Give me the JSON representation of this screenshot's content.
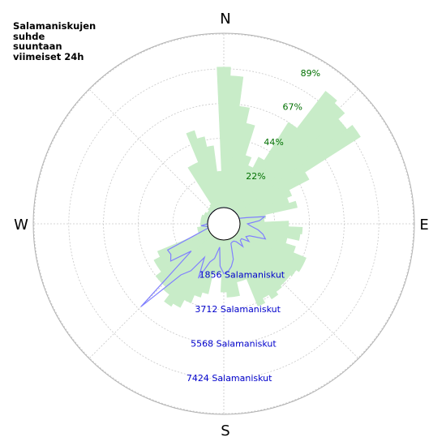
{
  "chart_data": {
    "type": "polar",
    "title": "Salamaniskujen\nsuhde\nsuuntaan\nviimeiset 24h",
    "compass_labels": [
      "N",
      "E",
      "S",
      "W"
    ],
    "percent_ticks": [
      "22%",
      "44%",
      "67%",
      "89%"
    ],
    "percent_tick_values": [
      22,
      44,
      67,
      89
    ],
    "percent_max": 100,
    "count_ticks": [
      "1856 Salamaniskut",
      "3712 Salamaniskut",
      "5568 Salamaniskut",
      "7424 Salamaniskut"
    ],
    "count_tick_values": [
      1856,
      3712,
      5568,
      7424
    ],
    "count_max": 9280,
    "grid": true,
    "bin_width_deg": 5,
    "series": [
      {
        "kind": "percent_bars",
        "color": "#c8ecc8",
        "directions_deg": [
          0,
          5,
          10,
          15,
          20,
          25,
          30,
          35,
          40,
          45,
          50,
          55,
          60,
          65,
          70,
          75,
          80,
          85,
          90,
          95,
          100,
          105,
          110,
          115,
          120,
          125,
          130,
          135,
          140,
          145,
          150,
          155,
          160,
          165,
          170,
          175,
          180,
          185,
          190,
          195,
          200,
          205,
          210,
          215,
          220,
          225,
          230,
          235,
          240,
          245,
          250,
          255,
          260,
          265,
          270,
          275,
          280,
          285,
          290,
          295,
          300,
          305,
          310,
          315,
          320,
          325,
          330,
          335,
          340,
          345,
          350,
          355
        ],
        "values": [
          81,
          76,
          59,
          50,
          32,
          27,
          34,
          60,
          87,
          85,
          80,
          84,
          46,
          33,
          30,
          34,
          15,
          14,
          28,
          36,
          35,
          28,
          34,
          42,
          42,
          40,
          39,
          39,
          40,
          42,
          39,
          42,
          25,
          25,
          33,
          33,
          30,
          19,
          20,
          32,
          35,
          40,
          45,
          47,
          42,
          40,
          40,
          36,
          36,
          32,
          6,
          6,
          6,
          4,
          4,
          4,
          4,
          4,
          4,
          3,
          3,
          2,
          2,
          3,
          3,
          4,
          29,
          29,
          47,
          42,
          36,
          21
        ]
      },
      {
        "kind": "count_line",
        "color": "#8080ff",
        "directions_deg": [
          0,
          5,
          10,
          15,
          20,
          25,
          30,
          35,
          40,
          45,
          50,
          55,
          60,
          65,
          70,
          75,
          80,
          85,
          90,
          95,
          100,
          105,
          110,
          115,
          120,
          125,
          130,
          135,
          140,
          145,
          150,
          155,
          160,
          165,
          170,
          175,
          180,
          185,
          190,
          195,
          200,
          205,
          210,
          215,
          220,
          225,
          230,
          235,
          240,
          245,
          250,
          255,
          260,
          265,
          270,
          275,
          280,
          285,
          290,
          295,
          300,
          305,
          310,
          315,
          320,
          325,
          330,
          335,
          340,
          345,
          350,
          355
        ],
        "values": [
          0,
          0,
          0,
          0,
          0,
          0,
          0,
          0,
          0,
          0,
          0,
          0,
          0,
          0,
          0,
          400,
          1350,
          1050,
          400,
          600,
          1000,
          1300,
          1500,
          650,
          500,
          780,
          370,
          380,
          720,
          300,
          200,
          200,
          250,
          1100,
          1450,
          1700,
          1800,
          1400,
          400,
          1050,
          1300,
          2350,
          1200,
          2200,
          2700,
          5400,
          1400,
          2600,
          2400,
          2450,
          500,
          0,
          0,
          350,
          0,
          0,
          0,
          0,
          0,
          0,
          0,
          0,
          0,
          0,
          0,
          0,
          0,
          0,
          0,
          0,
          0,
          0
        ]
      }
    ]
  }
}
